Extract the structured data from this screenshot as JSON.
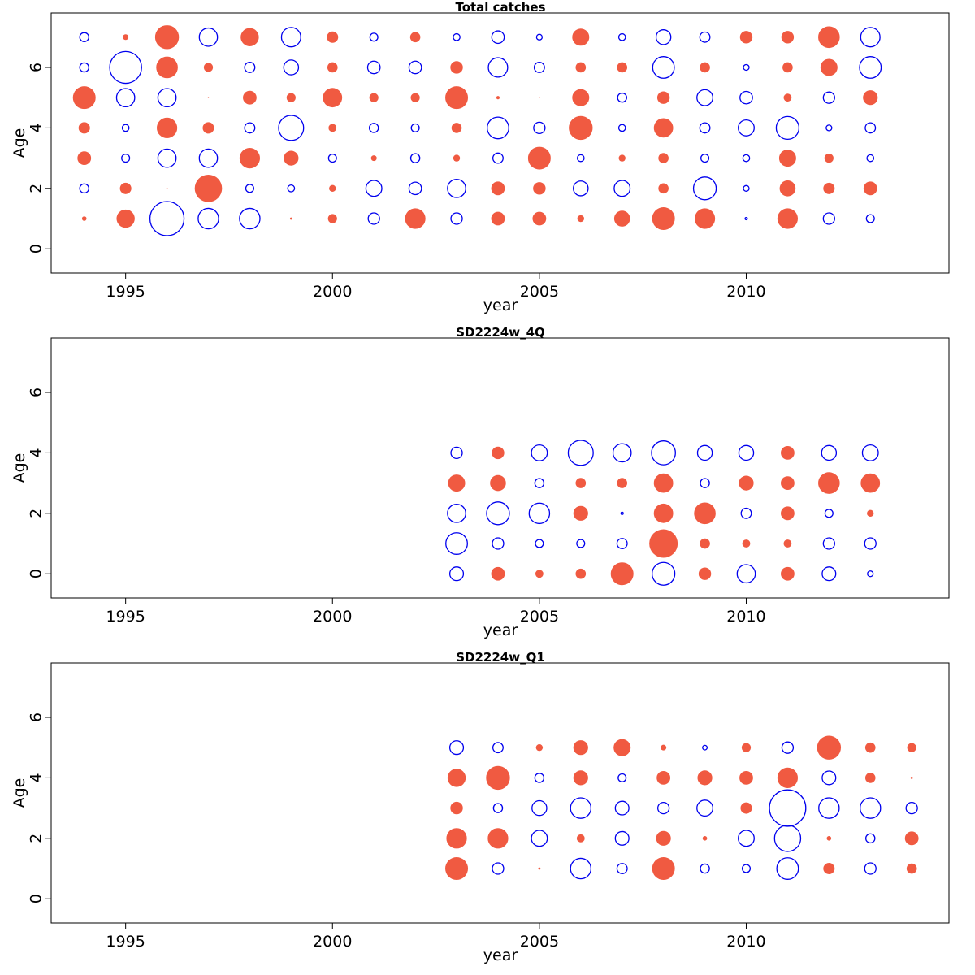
{
  "colors": {
    "positive": "#f05a41",
    "negative": "#0000ee"
  },
  "chart_data": [
    {
      "type": "scatter",
      "subtype": "bubble",
      "title": "Total catches",
      "xlabel": "year",
      "ylabel": "Age",
      "xlim": [
        1993.2,
        2014.9
      ],
      "ylim": [
        -0.8,
        7.8
      ],
      "xticks": [
        1995,
        2000,
        2005,
        2010
      ],
      "yticks": [
        0,
        2,
        4,
        6
      ],
      "note": "Filled red circles = positive values; open blue circles = negative values; circle size proportional to magnitude.",
      "x": [
        1994,
        1995,
        1996,
        1997,
        1998,
        1999,
        2000,
        2001,
        2002,
        2003,
        2004,
        2005,
        2006,
        2007,
        2008,
        2009,
        2010,
        2011,
        2012,
        2013
      ],
      "rows": [
        {
          "age": 1,
          "values": [
            0.2,
            0.8,
            -1.5,
            -0.9,
            -0.9,
            0.1,
            0.4,
            -0.5,
            0.9,
            -0.5,
            0.6,
            0.6,
            0.3,
            0.7,
            1.0,
            0.9,
            -0.1,
            0.9,
            -0.5,
            -0.35
          ]
        },
        {
          "age": 2,
          "values": [
            -0.4,
            0.5,
            0.05,
            1.2,
            -0.35,
            -0.3,
            0.3,
            -0.7,
            -0.55,
            -0.8,
            0.6,
            0.55,
            -0.65,
            -0.7,
            0.45,
            -1.0,
            -0.25,
            0.7,
            0.5,
            0.6
          ]
        },
        {
          "age": 3,
          "values": [
            0.6,
            -0.35,
            -0.8,
            -0.8,
            0.9,
            0.65,
            -0.35,
            0.25,
            -0.4,
            0.3,
            -0.45,
            1.0,
            -0.3,
            0.3,
            0.45,
            -0.35,
            -0.3,
            0.75,
            0.4,
            -0.3
          ]
        },
        {
          "age": 4,
          "values": [
            0.5,
            -0.3,
            0.9,
            0.5,
            -0.45,
            -1.1,
            0.35,
            -0.4,
            -0.35,
            0.45,
            -0.95,
            -0.5,
            1.05,
            -0.3,
            0.85,
            -0.45,
            -0.7,
            -1.0,
            -0.25,
            -0.45
          ]
        },
        {
          "age": 5,
          "values": [
            1.0,
            -0.8,
            -0.8,
            0.03,
            0.6,
            0.4,
            0.85,
            0.4,
            0.4,
            1.0,
            0.15,
            0.05,
            0.75,
            -0.4,
            0.55,
            -0.7,
            -0.55,
            0.35,
            -0.5,
            0.65
          ]
        },
        {
          "age": 6,
          "values": [
            -0.4,
            -1.4,
            0.95,
            0.4,
            -0.45,
            -0.65,
            0.45,
            -0.55,
            -0.55,
            0.55,
            -0.85,
            -0.45,
            0.45,
            0.45,
            -0.95,
            0.45,
            -0.25,
            0.45,
            0.75,
            -0.95
          ]
        },
        {
          "age": 7,
          "values": [
            -0.4,
            0.25,
            1.05,
            -0.8,
            0.8,
            -0.85,
            0.5,
            -0.35,
            0.45,
            -0.3,
            -0.55,
            -0.25,
            0.75,
            -0.3,
            -0.65,
            -0.45,
            0.55,
            0.55,
            0.95,
            -0.85
          ]
        }
      ]
    },
    {
      "type": "scatter",
      "subtype": "bubble",
      "title": "SD2224w_4Q",
      "xlabel": "year",
      "ylabel": "Age",
      "xlim": [
        1993.2,
        2014.9
      ],
      "ylim": [
        -0.8,
        7.8
      ],
      "xticks": [
        1995,
        2000,
        2005,
        2010
      ],
      "yticks": [
        0,
        2,
        4,
        6
      ],
      "note": "Filled red circles = positive values; open blue circles = negative values; circle size proportional to magnitude.",
      "x": [
        2003,
        2004,
        2005,
        2006,
        2007,
        2008,
        2009,
        2010,
        2011,
        2012,
        2013
      ],
      "rows": [
        {
          "age": 0,
          "values": [
            -0.6,
            0.6,
            0.35,
            0.45,
            1.0,
            -1.0,
            0.55,
            -0.8,
            0.6,
            -0.6,
            -0.25
          ]
        },
        {
          "age": 1,
          "values": [
            -0.95,
            -0.5,
            -0.35,
            -0.35,
            -0.45,
            1.25,
            0.45,
            0.35,
            0.35,
            -0.5,
            -0.5
          ]
        },
        {
          "age": 2,
          "values": [
            -0.8,
            -1.0,
            -0.9,
            0.65,
            -0.1,
            0.85,
            0.95,
            -0.45,
            0.6,
            -0.35,
            0.3
          ]
        },
        {
          "age": 3,
          "values": [
            0.75,
            0.7,
            -0.4,
            0.45,
            0.45,
            0.85,
            -0.4,
            0.65,
            0.6,
            0.95,
            0.85
          ]
        },
        {
          "age": 4,
          "values": [
            -0.5,
            0.55,
            -0.7,
            -1.1,
            -0.8,
            -1.05,
            -0.65,
            -0.65,
            0.6,
            -0.65,
            -0.7
          ]
        }
      ]
    },
    {
      "type": "scatter",
      "subtype": "bubble",
      "title": "SD2224w_Q1",
      "xlabel": "year",
      "ylabel": "Age",
      "xlim": [
        1993.2,
        2014.9
      ],
      "ylim": [
        -0.8,
        7.8
      ],
      "xticks": [
        1995,
        2000,
        2005,
        2010
      ],
      "yticks": [
        0,
        2,
        4,
        6
      ],
      "note": "Filled red circles = positive values; open blue circles = negative values; circle size proportional to magnitude.",
      "x": [
        2003,
        2004,
        2005,
        2006,
        2007,
        2008,
        2009,
        2010,
        2011,
        2012,
        2013,
        2014
      ],
      "rows": [
        {
          "age": 1,
          "values": [
            1.0,
            -0.5,
            0.1,
            -0.9,
            -0.45,
            1.0,
            -0.4,
            -0.35,
            -0.95,
            0.5,
            -0.5,
            0.45
          ]
        },
        {
          "age": 2,
          "values": [
            0.9,
            0.9,
            -0.7,
            0.35,
            -0.6,
            0.65,
            0.2,
            -0.7,
            -1.15,
            0.2,
            -0.4,
            0.6
          ]
        },
        {
          "age": 3,
          "values": [
            0.55,
            -0.4,
            -0.65,
            -0.9,
            -0.6,
            -0.5,
            -0.7,
            0.5,
            -1.6,
            -0.9,
            -0.9,
            -0.5
          ]
        },
        {
          "age": 4,
          "values": [
            0.8,
            1.05,
            -0.4,
            0.65,
            -0.35,
            0.6,
            0.65,
            0.6,
            0.9,
            -0.6,
            0.45,
            0.1
          ]
        },
        {
          "age": 5,
          "values": [
            -0.6,
            -0.45,
            0.3,
            0.65,
            0.75,
            0.25,
            -0.2,
            0.4,
            -0.5,
            1.05,
            0.45,
            0.4
          ]
        }
      ]
    }
  ]
}
